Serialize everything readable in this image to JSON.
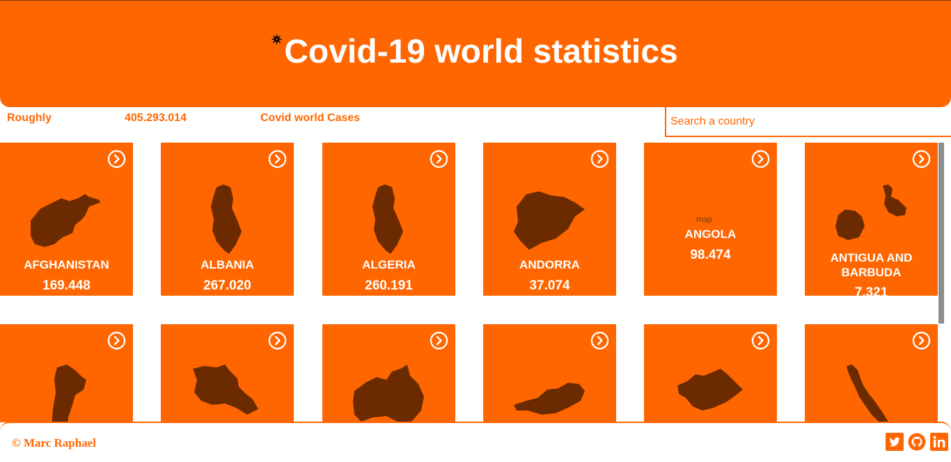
{
  "header": {
    "title": "Covid-19 world statistics",
    "icon": "virus-icon",
    "color": "#ff6600"
  },
  "stats": {
    "prefix": "Roughly",
    "total": "405.293.014",
    "suffix": "Covid world Cases"
  },
  "search": {
    "placeholder": "Search a country",
    "value": ""
  },
  "countries": [
    {
      "name": "AFGHANISTAN",
      "cases": "169.448"
    },
    {
      "name": "ALBANIA",
      "cases": "267.020"
    },
    {
      "name": "ALGERIA",
      "cases": "260.191"
    },
    {
      "name": "ANDORRA",
      "cases": "37.074"
    },
    {
      "name": "ANGOLA",
      "cases": "98.474",
      "map_alt": "map"
    },
    {
      "name": "ANTIGUA AND BARBUDA",
      "cases": "7.321"
    },
    {
      "name": "",
      "cases": ""
    },
    {
      "name": "",
      "cases": ""
    },
    {
      "name": "",
      "cases": ""
    },
    {
      "name": "",
      "cases": ""
    },
    {
      "name": "",
      "cases": ""
    },
    {
      "name": "",
      "cases": ""
    }
  ],
  "colors": {
    "accent": "#ff6600",
    "map_fill": "#6b2a00"
  },
  "footer": {
    "copyright": "© Marc Raphael",
    "social": [
      "twitter-icon",
      "github-icon",
      "linkedin-icon"
    ]
  }
}
